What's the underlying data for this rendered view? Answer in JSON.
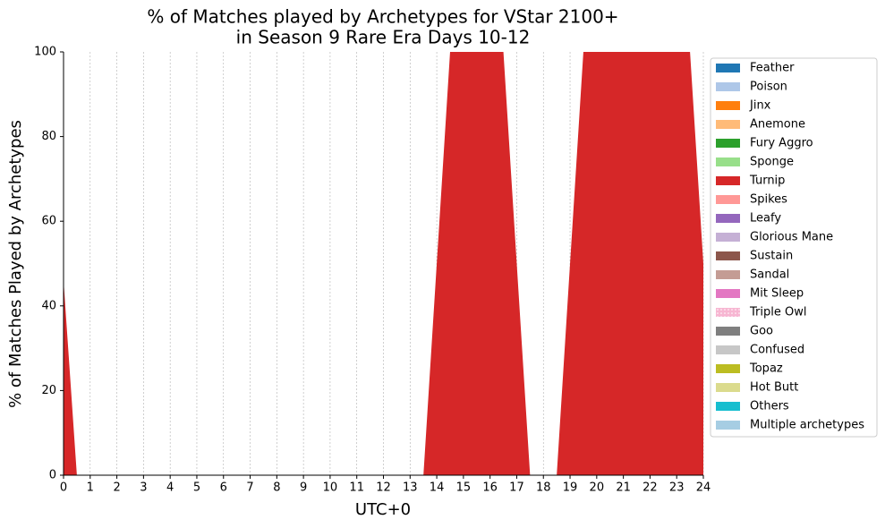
{
  "chart_data": {
    "type": "stacked_area",
    "title": [
      "% of Matches played by Archetypes for VStar 2100+",
      "in Season 9 Rare Era Days 10-12"
    ],
    "xlabel": "UTC+0",
    "ylabel": "% of Matches Played by Archetypes",
    "x": [
      0,
      0.5,
      13.5,
      14.5,
      16.5,
      17.5,
      18.5,
      19.5,
      23.5,
      24
    ],
    "xlim": [
      0,
      24
    ],
    "xticks": [
      0,
      1,
      2,
      3,
      4,
      5,
      6,
      7,
      8,
      9,
      10,
      11,
      12,
      13,
      14,
      15,
      16,
      17,
      18,
      19,
      20,
      21,
      22,
      23,
      24
    ],
    "ylim": [
      0,
      100
    ],
    "yticks": [
      0,
      20,
      40,
      60,
      80,
      100
    ],
    "grid": "x",
    "legend": "outside right",
    "series": [
      {
        "name": "Feather",
        "color": "#1f77b4",
        "values": [
          0,
          0,
          0,
          0,
          0,
          0,
          0,
          0,
          0,
          0
        ]
      },
      {
        "name": "Poison",
        "color": "#aec7e8",
        "values": [
          0,
          0,
          0,
          0,
          0,
          0,
          0,
          0,
          0,
          0
        ]
      },
      {
        "name": "Jinx",
        "color": "#ff7f0e",
        "values": [
          0,
          0,
          0,
          0,
          0,
          0,
          0,
          0,
          0,
          0
        ]
      },
      {
        "name": "Anemone",
        "color": "#ffbb78",
        "values": [
          0,
          0,
          0,
          0,
          0,
          0,
          0,
          0,
          0,
          0
        ]
      },
      {
        "name": "Fury Aggro",
        "color": "#2ca02c",
        "values": [
          0,
          0,
          0,
          0,
          0,
          0,
          0,
          0,
          0,
          0
        ]
      },
      {
        "name": "Sponge",
        "color": "#98df8a",
        "values": [
          0,
          0,
          0,
          0,
          0,
          0,
          0,
          0,
          0,
          0
        ]
      },
      {
        "name": "Turnip",
        "color": "#d62728",
        "values": [
          46,
          0,
          0,
          100,
          100,
          0,
          0,
          100,
          100,
          50
        ]
      },
      {
        "name": "Spikes",
        "color": "#ff9896",
        "values": [
          0,
          0,
          0,
          0,
          0,
          0,
          0,
          0,
          0,
          0
        ]
      },
      {
        "name": "Leafy",
        "color": "#9467bd",
        "values": [
          0,
          0,
          0,
          0,
          0,
          0,
          0,
          0,
          0,
          0
        ]
      },
      {
        "name": "Glorious Mane",
        "color": "#c5b0d5",
        "values": [
          0,
          0,
          0,
          0,
          0,
          0,
          0,
          0,
          0,
          0
        ]
      },
      {
        "name": "Sustain",
        "color": "#8c564b",
        "values": [
          0,
          0,
          0,
          0,
          0,
          0,
          0,
          0,
          0,
          0
        ]
      },
      {
        "name": "Sandal",
        "color": "#c49c94",
        "values": [
          0,
          0,
          0,
          0,
          0,
          0,
          0,
          0,
          0,
          0
        ]
      },
      {
        "name": "Mit Sleep",
        "color": "#e377c2",
        "values": [
          0,
          0,
          0,
          0,
          0,
          0,
          0,
          0,
          0,
          0
        ]
      },
      {
        "name": "Triple Owl",
        "color": "#f7b6d2",
        "values": [
          0,
          0,
          0,
          0,
          0,
          0,
          0,
          0,
          0,
          0
        ]
      },
      {
        "name": "Goo",
        "color": "#7f7f7f",
        "values": [
          0,
          0,
          0,
          0,
          0,
          0,
          0,
          0,
          0,
          0
        ]
      },
      {
        "name": "Confused",
        "color": "#c7c7c7",
        "values": [
          0,
          0,
          0,
          0,
          0,
          0,
          0,
          0,
          0,
          0
        ]
      },
      {
        "name": "Topaz",
        "color": "#bcbd22",
        "values": [
          0,
          0,
          0,
          0,
          0,
          0,
          0,
          0,
          0,
          0
        ]
      },
      {
        "name": "Hot Butt",
        "color": "#dbdb8d",
        "values": [
          0,
          0,
          0,
          0,
          0,
          0,
          0,
          0,
          0,
          0
        ]
      },
      {
        "name": "Others",
        "color": "#17becf",
        "values": [
          0,
          0,
          0,
          0,
          0,
          0,
          0,
          0,
          0,
          0
        ]
      },
      {
        "name": "Multiple archetypes",
        "color": "#a6cde3",
        "values": [
          0,
          0,
          0,
          0,
          0,
          0,
          0,
          0,
          0,
          0
        ]
      }
    ]
  }
}
